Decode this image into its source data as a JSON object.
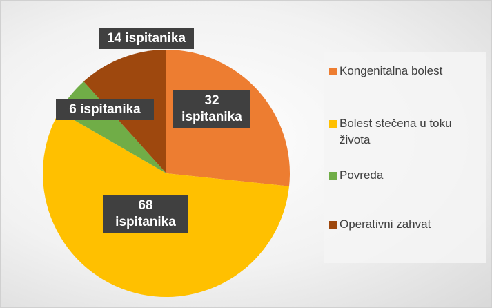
{
  "chart_data": {
    "type": "pie",
    "categories": [
      "Kongenitalna bolest",
      "Bolest stečena u toku života",
      "Povreda",
      "Operativni zahvat"
    ],
    "values": [
      32,
      68,
      6,
      14
    ],
    "value_labels": [
      "32 ispitanika",
      "68 ispitanika",
      "6 ispitanika",
      "14 ispitanika"
    ],
    "colors": [
      "#ed7d31",
      "#ffc000",
      "#70ad47",
      "#9e480e"
    ],
    "legend": "right"
  }
}
